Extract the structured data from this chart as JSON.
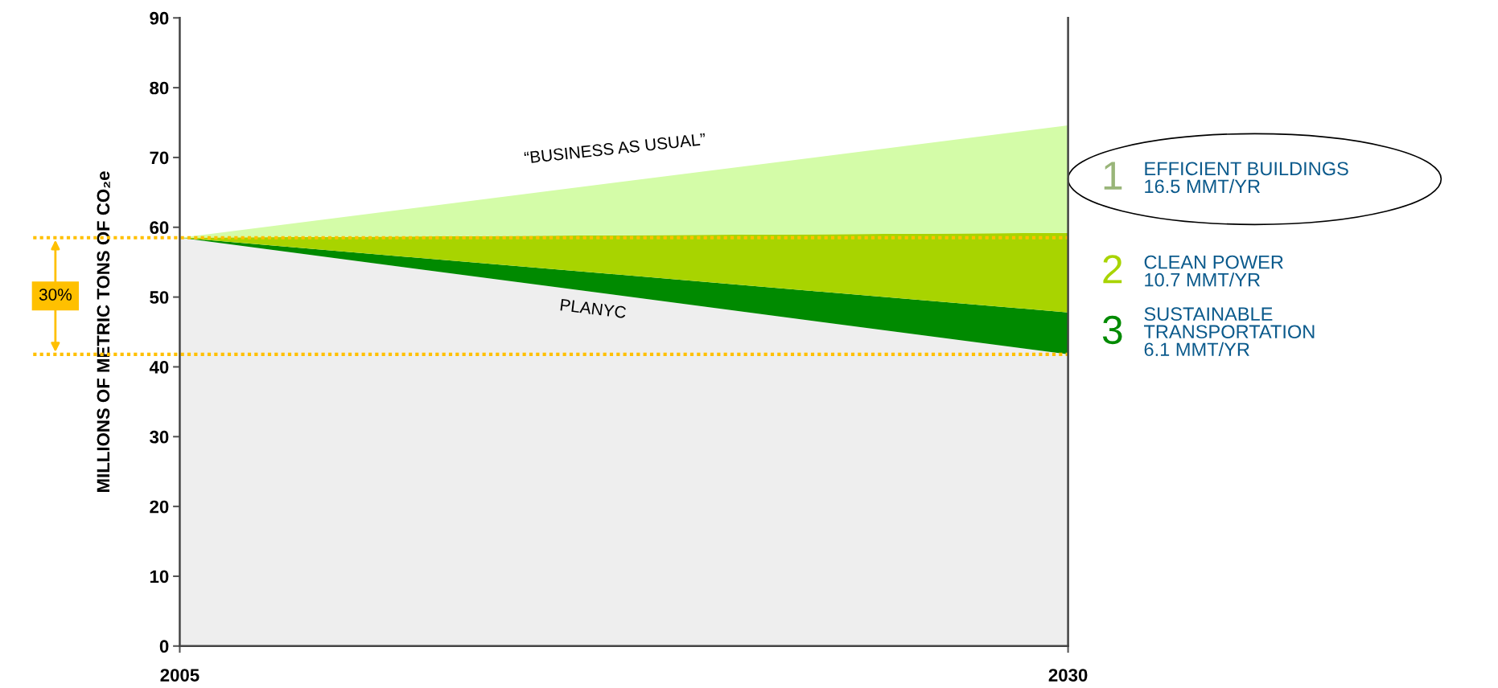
{
  "chart_data": {
    "type": "area",
    "stacked": true,
    "ylabel": "MILLIONS OF METRIC TONS OF CO₂e",
    "x": [
      2005,
      2030
    ],
    "xlim": [
      2005,
      2030
    ],
    "xticks": [
      2005,
      2030
    ],
    "ylim": [
      0,
      90
    ],
    "yticks": [
      0,
      10,
      20,
      30,
      40,
      50,
      60,
      70,
      80,
      90
    ],
    "grid": false,
    "series": [
      {
        "color": "#eeeeee",
        "values": [
          58.5,
          41.8
        ]
      },
      {
        "name": "3",
        "color": "#008a00",
        "values": [
          0,
          6.0
        ]
      },
      {
        "name": "2",
        "color": "#a8d400",
        "values": [
          0,
          11.4
        ]
      },
      {
        "name": "1",
        "color": "#d4fca8",
        "values": [
          0,
          15.4
        ]
      }
    ],
    "ref_lines": [
      {
        "axis": "y",
        "value": 58.5,
        "color": "#ffc000",
        "line_style": "dotted"
      },
      {
        "axis": "y",
        "value": 41.8,
        "color": "#ffc000",
        "line_style": "dotted"
      }
    ],
    "annotations": [
      "“BUSINESS AS USUAL”",
      "PLANYC",
      "30%",
      "SUSTAINABLE\nTRANSPORTATION\n6.1 MMT/YR",
      "CLEAN POWER\n10.7 MMT/YR",
      "EFFICIENT BUILDINGS\n16.5 MMT/YR"
    ]
  }
}
